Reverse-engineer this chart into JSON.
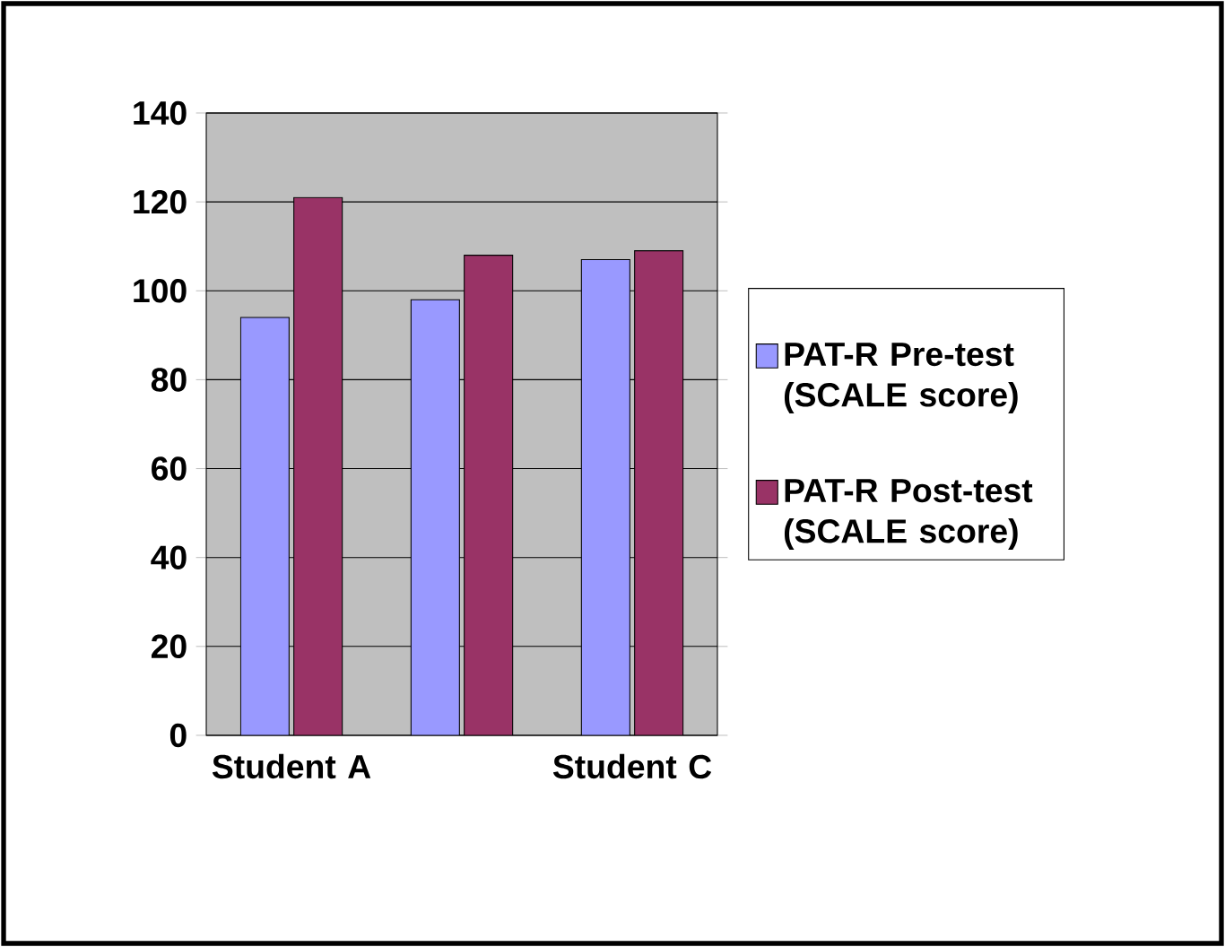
{
  "chart_data": {
    "type": "bar",
    "categories": [
      "Student A",
      null,
      "Student C"
    ],
    "series": [
      {
        "name": "PAT-R Pre-test (SCALE score)",
        "color": "#9999ff",
        "values": [
          94,
          98,
          107
        ]
      },
      {
        "name": "PAT-R Post-test (SCALE score)",
        "color": "#993366",
        "values": [
          121,
          108,
          109
        ]
      }
    ],
    "ylim": [
      0,
      140
    ],
    "yticks": [
      0,
      20,
      40,
      60,
      80,
      100,
      120,
      140
    ],
    "grid": "y",
    "legend": "right"
  }
}
